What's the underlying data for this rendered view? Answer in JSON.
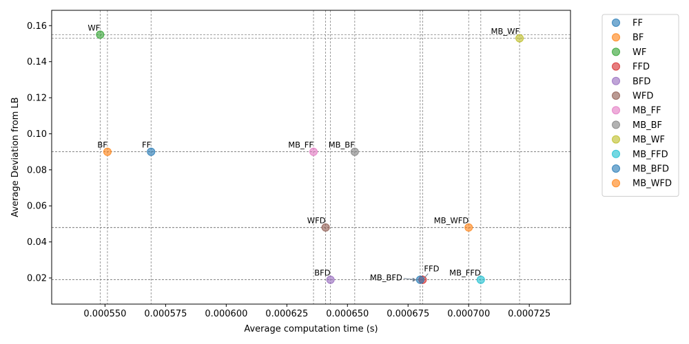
{
  "chart_data": {
    "type": "scatter",
    "xlabel": "Average computation time (s)",
    "ylabel": "Average Deviation from LB",
    "xlim": [
      0.000528,
      0.000742
    ],
    "ylim": [
      0.0055,
      0.1685
    ],
    "x_ticks": [
      "0.000550",
      "0.000575",
      "0.000600",
      "0.000625",
      "0.000650",
      "0.000675",
      "0.000700",
      "0.000725"
    ],
    "x_tick_values": [
      0.00055,
      0.000575,
      0.0006,
      0.000625,
      0.00065,
      0.000675,
      0.0007,
      0.000725
    ],
    "y_ticks": [
      "0.02",
      "0.04",
      "0.06",
      "0.08",
      "0.10",
      "0.12",
      "0.14",
      "0.16"
    ],
    "y_tick_values": [
      0.02,
      0.04,
      0.06,
      0.08,
      0.1,
      0.12,
      0.14,
      0.16
    ],
    "grid": "dashed reference lines at each point",
    "legend_position": "outside-right",
    "series": [
      {
        "name": "FF",
        "x": 0.000569,
        "y": 0.09,
        "color": "#1f77b4"
      },
      {
        "name": "BF",
        "x": 0.000551,
        "y": 0.09,
        "color": "#ff7f0e"
      },
      {
        "name": "WF",
        "x": 0.000548,
        "y": 0.155,
        "color": "#2ca02c"
      },
      {
        "name": "FFD",
        "x": 0.000681,
        "y": 0.019,
        "color": "#d62728"
      },
      {
        "name": "BFD",
        "x": 0.000643,
        "y": 0.019,
        "color": "#9467bd"
      },
      {
        "name": "WFD",
        "x": 0.000641,
        "y": 0.048,
        "color": "#8c564b"
      },
      {
        "name": "MB_FF",
        "x": 0.000636,
        "y": 0.09,
        "color": "#e377c2"
      },
      {
        "name": "MB_BF",
        "x": 0.000653,
        "y": 0.09,
        "color": "#7f7f7f"
      },
      {
        "name": "MB_WF",
        "x": 0.000721,
        "y": 0.153,
        "color": "#bcbd22"
      },
      {
        "name": "MB_FFD",
        "x": 0.000705,
        "y": 0.019,
        "color": "#17becf"
      },
      {
        "name": "MB_BFD",
        "x": 0.00068,
        "y": 0.019,
        "color": "#1f77b4"
      },
      {
        "name": "MB_WFD",
        "x": 0.0007,
        "y": 0.048,
        "color": "#ff7f0e"
      }
    ]
  }
}
